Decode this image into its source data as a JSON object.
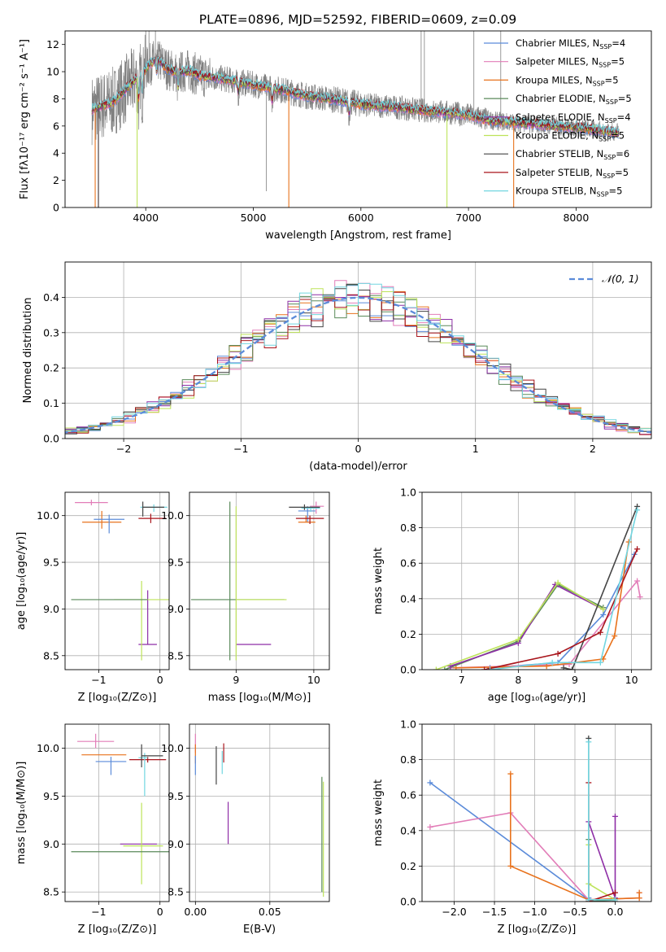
{
  "figure_title": "PLATE=0896, MJD=52592, FIBERID=0609, z=0.09",
  "colors": {
    "Chabrier MILES": "#5b8bd9",
    "Salpeter MILES": "#e27db8",
    "Kroupa MILES": "#e8721c",
    "Chabrier ELODIE": "#5a8a5a",
    "Salpeter ELODIE": "#8e2ea6",
    "Kroupa ELODIE": "#bde35a",
    "Chabrier STELIB": "#444444",
    "Salpeter STELIB": "#a8141b",
    "Kroupa STELIB": "#72d6e0"
  },
  "chart_data": [
    {
      "id": "spectrum",
      "type": "line",
      "xlabel": "wavelength [Angstrom, rest frame]",
      "ylabel": "Flux [fλ10⁻¹⁷ erg cm⁻² s⁻¹ A⁻¹]",
      "xlim": [
        3250,
        8700
      ],
      "ylim": [
        0,
        13
      ],
      "xticks": [
        4000,
        5000,
        6000,
        7000,
        8000
      ],
      "yticks": [
        0,
        2,
        4,
        6,
        8,
        10,
        12
      ],
      "grid": false,
      "legend_position": "upper-right",
      "continuum": {
        "x": [
          3500,
          3700,
          3900,
          4100,
          4200,
          4300,
          4400,
          4500,
          4700,
          4900,
          5100,
          5300,
          5500,
          5800,
          6000,
          6300,
          6500,
          6800,
          7000,
          7200,
          7500,
          7800,
          8000,
          8200,
          8400
        ],
        "y": [
          7.2,
          7.8,
          9.4,
          11.0,
          10.2,
          9.9,
          10.1,
          9.7,
          9.5,
          9.2,
          8.9,
          8.6,
          8.2,
          7.9,
          7.6,
          7.4,
          7.2,
          7.0,
          6.8,
          6.4,
          6.2,
          6.0,
          5.9,
          5.7,
          5.5
        ]
      },
      "observed_color": "#808080",
      "series": [
        {
          "name": "Chabrier MILES",
          "nssp": "4"
        },
        {
          "name": "Salpeter MILES",
          "nssp": "5"
        },
        {
          "name": "Kroupa MILES",
          "nssp": "5"
        },
        {
          "name": "Chabrier ELODIE",
          "nssp": "5"
        },
        {
          "name": "Salpeter ELODIE",
          "nssp": "4"
        },
        {
          "name": "Kroupa ELODIE",
          "nssp": "5"
        },
        {
          "name": "Chabrier STELIB",
          "nssp": "6"
        },
        {
          "name": "Salpeter STELIB",
          "nssp": "5"
        },
        {
          "name": "Kroupa STELIB",
          "nssp": "5"
        }
      ]
    },
    {
      "id": "residuals",
      "type": "line",
      "xlabel": "(data-model)/error",
      "ylabel": "Normed distribution",
      "xlim": [
        -2.5,
        2.5
      ],
      "ylim": [
        0,
        0.5
      ],
      "xticks": [
        -2,
        -1,
        0,
        1,
        2
      ],
      "xticklabels": [
        "−2",
        "−1",
        "0",
        "1",
        "2"
      ],
      "yticks": [
        0.0,
        0.1,
        0.2,
        0.3,
        0.4
      ],
      "yticklabels": [
        "0.0",
        "0.1",
        "0.2",
        "0.3",
        "0.4"
      ],
      "grid": true,
      "legend_position": "upper-right",
      "reference_label": "𝒩(0, 1)",
      "bin_width": 0.1,
      "series_order": [
        "Chabrier MILES",
        "Salpeter MILES",
        "Kroupa MILES",
        "Chabrier ELODIE",
        "Salpeter ELODIE",
        "Kroupa ELODIE",
        "Chabrier STELIB",
        "Salpeter STELIB",
        "Kroupa STELIB"
      ]
    },
    {
      "id": "z-age",
      "type": "scatter",
      "xlabel": "Z [log₁₀(Z/Z⊙)]",
      "ylabel": "age  [log₁₀(age/yr)]",
      "xlim": [
        -1.55,
        0.15
      ],
      "ylim": [
        8.35,
        10.25
      ],
      "xticks": [
        -1,
        0
      ],
      "xticklabels": [
        "−1",
        "0"
      ],
      "yticks": [
        8.5,
        9.0,
        9.5,
        10.0
      ],
      "yticklabels": [
        "8.5",
        "9.0",
        "9.5",
        "10.0"
      ],
      "grid": true,
      "points": [
        {
          "s": "Salpeter MILES",
          "x": -1.12,
          "y": 10.14,
          "xerr": [
            0.27,
            0.27
          ],
          "yerr": [
            0.03,
            0.03
          ]
        },
        {
          "s": "Kroupa MILES",
          "x": -0.95,
          "y": 9.93,
          "xerr": [
            0.32,
            0.32
          ],
          "yerr": [
            0.07,
            0.12
          ]
        },
        {
          "s": "Chabrier MILES",
          "x": -0.83,
          "y": 9.96,
          "xerr": [
            0.25,
            0.25
          ],
          "yerr": [
            0.15,
            0.05
          ]
        },
        {
          "s": "Salpeter ELODIE",
          "x": -0.2,
          "y": 8.62,
          "xerr": [
            0.15,
            0.15
          ],
          "yerr": [
            0.0,
            0.58
          ]
        },
        {
          "s": "Kroupa ELODIE",
          "x": -0.3,
          "y": 9.1,
          "xerr": [
            0.45,
            0.45
          ],
          "yerr": [
            0.65,
            0.2
          ]
        },
        {
          "s": "Chabrier ELODIE",
          "x": -0.75,
          "y": 9.1,
          "xerr": [
            0.7,
            0.55
          ],
          "yerr": [
            0.0,
            0.0
          ]
        },
        {
          "s": "Salpeter STELIB",
          "x": -0.15,
          "y": 9.97,
          "xerr": [
            0.2,
            0.25
          ],
          "yerr": [
            0.05,
            0.05
          ]
        },
        {
          "s": "Kroupa STELIB",
          "x": -0.1,
          "y": 10.09,
          "xerr": [
            0.22,
            0.22
          ],
          "yerr": [
            0.05,
            0.03
          ]
        },
        {
          "s": "Chabrier STELIB",
          "x": -0.28,
          "y": 10.09,
          "xerr": [
            0.0,
            0.35
          ],
          "yerr": [
            0.1,
            0.06
          ]
        }
      ]
    },
    {
      "id": "mass-age",
      "type": "scatter",
      "xlabel": "mass [log₁₀(M/M⊙)]",
      "ylabel": "",
      "xlim": [
        8.4,
        10.2
      ],
      "ylim": [
        8.35,
        10.25
      ],
      "xticks": [
        9,
        10
      ],
      "xticklabels": [
        "9",
        "10"
      ],
      "yticks": [
        8.5,
        9.0,
        9.5,
        10.0
      ],
      "yticklabels": [
        "8.5",
        "9.0",
        "9.5",
        "10.0"
      ],
      "grid": true,
      "points": [
        {
          "s": "Salpeter ELODIE",
          "x": 9.0,
          "y": 8.62,
          "xerr": [
            0.0,
            0.45
          ],
          "yerr": [
            0.0,
            0.0
          ]
        },
        {
          "s": "Chabrier ELODIE",
          "x": 8.92,
          "y": 9.1,
          "xerr": [
            0.5,
            0.7
          ],
          "yerr": [
            0.65,
            1.05
          ]
        },
        {
          "s": "Kroupa ELODIE",
          "x": 9.0,
          "y": 9.1,
          "xerr": [
            0.0,
            0.65
          ],
          "yerr": [
            0.65,
            1.0
          ]
        },
        {
          "s": "Chabrier MILES",
          "x": 9.92,
          "y": 10.05,
          "xerr": [
            0.12,
            0.1
          ],
          "yerr": [
            0.12,
            0.05
          ]
        },
        {
          "s": "Salpeter MILES",
          "x": 10.03,
          "y": 10.1,
          "xerr": [
            0.08,
            0.1
          ],
          "yerr": [
            0.08,
            0.05
          ]
        },
        {
          "s": "Kroupa MILES",
          "x": 9.9,
          "y": 9.93,
          "xerr": [
            0.1,
            0.12
          ],
          "yerr": [
            0.0,
            0.07
          ]
        },
        {
          "s": "Salpeter STELIB",
          "x": 9.95,
          "y": 9.97,
          "xerr": [
            0.18,
            0.18
          ],
          "yerr": [
            0.06,
            0.03
          ]
        },
        {
          "s": "Kroupa STELIB",
          "x": 9.96,
          "y": 10.08,
          "xerr": [
            0.12,
            0.12
          ],
          "yerr": [
            0.04,
            0.02
          ]
        },
        {
          "s": "Chabrier STELIB",
          "x": 9.88,
          "y": 10.09,
          "xerr": [
            0.2,
            0.2
          ],
          "yerr": [
            0.03,
            0.03
          ]
        }
      ]
    },
    {
      "id": "age-weight",
      "type": "line",
      "xlabel": "age  [log₁₀(age/yr)]",
      "ylabel": "mass weight",
      "xlim": [
        6.3,
        10.35
      ],
      "ylim": [
        0.0,
        1.0
      ],
      "xticks": [
        7,
        8,
        9,
        10
      ],
      "xticklabels": [
        "7",
        "8",
        "9",
        "10"
      ],
      "yticks": [
        0.0,
        0.2,
        0.4,
        0.6,
        0.8,
        1.0
      ],
      "yticklabels": [
        "0.0",
        "0.2",
        "0.4",
        "0.6",
        "0.8",
        "1.0"
      ],
      "grid": true,
      "series": [
        {
          "s": "Chabrier MILES",
          "x": [
            7.5,
            8.7,
            9.5,
            10.05
          ],
          "y": [
            0.01,
            0.04,
            0.31,
            0.65
          ]
        },
        {
          "s": "Salpeter MILES",
          "x": [
            6.8,
            8.9,
            10.1,
            10.15
          ],
          "y": [
            0.01,
            0.03,
            0.5,
            0.41
          ]
        },
        {
          "s": "Kroupa MILES",
          "x": [
            6.9,
            8.5,
            9.5,
            9.7,
            9.95
          ],
          "y": [
            0.01,
            0.02,
            0.06,
            0.19,
            0.72
          ]
        },
        {
          "s": "Chabrier ELODIE",
          "x": [
            6.7,
            8.0,
            8.7,
            9.5
          ],
          "y": [
            0.0,
            0.16,
            0.48,
            0.35
          ]
        },
        {
          "s": "Salpeter ELODIE",
          "x": [
            6.8,
            8.0,
            8.65,
            9.5
          ],
          "y": [
            0.02,
            0.15,
            0.48,
            0.34
          ]
        },
        {
          "s": "Kroupa ELODIE",
          "x": [
            6.55,
            8.0,
            8.7,
            9.5
          ],
          "y": [
            0.0,
            0.17,
            0.49,
            0.34
          ]
        },
        {
          "s": "Chabrier STELIB",
          "x": [
            8.8,
            8.95,
            10.1
          ],
          "y": [
            0.01,
            0.0,
            0.92
          ]
        },
        {
          "s": "Salpeter STELIB",
          "x": [
            7.4,
            8.7,
            9.45,
            10.1
          ],
          "y": [
            0.0,
            0.09,
            0.21,
            0.68
          ]
        },
        {
          "s": "Kroupa STELIB",
          "x": [
            7.5,
            8.6,
            9.45,
            10.1
          ],
          "y": [
            0.0,
            0.04,
            0.04,
            0.9
          ]
        }
      ]
    },
    {
      "id": "z-mass",
      "type": "scatter",
      "xlabel": "Z [log₁₀(Z/Z⊙)]",
      "ylabel": "mass [log₁₀(M/M⊙)]",
      "xlim": [
        -1.55,
        0.15
      ],
      "ylim": [
        8.4,
        10.25
      ],
      "xticks": [
        -1,
        0
      ],
      "xticklabels": [
        "−1",
        "0"
      ],
      "yticks": [
        8.5,
        9.0,
        9.5,
        10.0
      ],
      "yticklabels": [
        "8.5",
        "9.0",
        "9.5",
        "10.0"
      ],
      "grid": true,
      "points": [
        {
          "s": "Salpeter MILES",
          "x": -1.05,
          "y": 10.07,
          "xerr": [
            0.3,
            0.3
          ],
          "yerr": [
            0.07,
            0.08
          ]
        },
        {
          "s": "Kroupa MILES",
          "x": -0.9,
          "y": 9.93,
          "xerr": [
            0.38,
            0.35
          ],
          "yerr": [
            0.0,
            0.0
          ]
        },
        {
          "s": "Chabrier MILES",
          "x": -0.8,
          "y": 9.86,
          "xerr": [
            0.25,
            0.25
          ],
          "yerr": [
            0.14,
            0.05
          ]
        },
        {
          "s": "Salpeter ELODIE",
          "x": -0.45,
          "y": 9.0,
          "xerr": [
            0.2,
            0.4
          ],
          "yerr": [
            0.0,
            0.0
          ]
        },
        {
          "s": "Kroupa ELODIE",
          "x": -0.3,
          "y": 8.98,
          "xerr": [
            0.3,
            0.35
          ],
          "yerr": [
            0.4,
            0.45
          ]
        },
        {
          "s": "Chabrier ELODIE",
          "x": -0.6,
          "y": 8.92,
          "xerr": [
            0.85,
            0.85
          ],
          "yerr": [
            0.0,
            0.0
          ]
        },
        {
          "s": "Salpeter STELIB",
          "x": -0.2,
          "y": 9.88,
          "xerr": [
            0.3,
            0.3
          ],
          "yerr": [
            0.03,
            0.03
          ]
        },
        {
          "s": "Kroupa STELIB",
          "x": -0.25,
          "y": 9.9,
          "xerr": [
            0.1,
            0.05
          ],
          "yerr": [
            0.4,
            0.05
          ]
        },
        {
          "s": "Chabrier STELIB",
          "x": -0.3,
          "y": 9.92,
          "xerr": [
            0.0,
            0.35
          ],
          "yerr": [
            0.12,
            0.12
          ]
        }
      ]
    },
    {
      "id": "ebv-mass",
      "type": "scatter",
      "xlabel": "E(B-V)",
      "ylabel": "",
      "xlim": [
        -0.004,
        0.09
      ],
      "ylim": [
        8.4,
        10.25
      ],
      "xticks": [
        0.0,
        0.05
      ],
      "xticklabels": [
        "0.00",
        "0.05"
      ],
      "yticks": [
        8.5,
        9.0,
        9.5,
        10.0
      ],
      "yticklabels": [
        "8.5",
        "9.0",
        "9.5",
        "10.0"
      ],
      "grid": true,
      "points": [
        {
          "s": "Salpeter MILES",
          "x": 0.0,
          "y": 10.05,
          "xerr": [
            0,
            0
          ],
          "yerr": [
            0.1,
            0.1
          ]
        },
        {
          "s": "Kroupa MILES",
          "x": 0.0,
          "y": 9.94,
          "xerr": [
            0,
            0
          ],
          "yerr": [
            0.1,
            0.1
          ]
        },
        {
          "s": "Chabrier MILES",
          "x": 0.0,
          "y": 9.82,
          "xerr": [
            0,
            0
          ],
          "yerr": [
            0.1,
            0.1
          ]
        },
        {
          "s": "Chabrier STELIB",
          "x": 0.014,
          "y": 9.82,
          "xerr": [
            0,
            0
          ],
          "yerr": [
            0.2,
            0.2
          ]
        },
        {
          "s": "Salpeter STELIB",
          "x": 0.019,
          "y": 9.95,
          "xerr": [
            0,
            0
          ],
          "yerr": [
            0.1,
            0.1
          ]
        },
        {
          "s": "Kroupa STELIB",
          "x": 0.018,
          "y": 9.85,
          "xerr": [
            0,
            0
          ],
          "yerr": [
            0.12,
            0.12
          ]
        },
        {
          "s": "Salpeter ELODIE",
          "x": 0.022,
          "y": 9.22,
          "xerr": [
            0,
            0
          ],
          "yerr": [
            0.22,
            0.22
          ]
        },
        {
          "s": "Kroupa ELODIE",
          "x": 0.086,
          "y": 9.05,
          "xerr": [
            0,
            0
          ],
          "yerr": [
            0.6,
            0.6
          ]
        },
        {
          "s": "Chabrier ELODIE",
          "x": 0.085,
          "y": 9.1,
          "xerr": [
            0,
            0
          ],
          "yerr": [
            0.6,
            0.6
          ]
        }
      ]
    },
    {
      "id": "z-weight",
      "type": "line",
      "xlabel": "Z [log₁₀(Z/Z⊙)]",
      "ylabel": "mass weight",
      "xlim": [
        -2.4,
        0.45
      ],
      "ylim": [
        0.0,
        1.0
      ],
      "xticks": [
        -2.0,
        -1.5,
        -1.0,
        -0.5,
        0.0
      ],
      "xticklabels": [
        "−2.0",
        "−1.5",
        "−1.0",
        "−0.5",
        "0.0"
      ],
      "yticks": [
        0.0,
        0.2,
        0.4,
        0.6,
        0.8,
        1.0
      ],
      "yticklabels": [
        "0.0",
        "0.2",
        "0.4",
        "0.6",
        "0.8",
        "1.0"
      ],
      "grid": true,
      "series": [
        {
          "s": "Chabrier MILES",
          "x": [
            -2.3,
            -0.33,
            -0.33
          ],
          "y": [
            0.67,
            0.01,
            0.02
          ]
        },
        {
          "s": "Salpeter MILES",
          "x": [
            -2.3,
            -1.3,
            -0.33,
            0.3,
            0.3
          ],
          "y": [
            0.42,
            0.5,
            0.01,
            0.02,
            0.05
          ]
        },
        {
          "s": "Kroupa MILES",
          "x": [
            -1.3,
            -1.3,
            -0.33,
            0.3,
            0.3
          ],
          "y": [
            0.72,
            0.2,
            0.01,
            0.02,
            0.05
          ]
        },
        {
          "s": "Chabrier ELODIE",
          "x": [
            -0.33,
            -0.33,
            0.0
          ],
          "y": [
            0.35,
            0.0,
            0.01
          ]
        },
        {
          "s": "Salpeter ELODIE",
          "x": [
            -0.33,
            0.0,
            0.0
          ],
          "y": [
            0.45,
            0.02,
            0.48
          ]
        },
        {
          "s": "Kroupa ELODIE",
          "x": [
            -0.33,
            -0.33,
            0.0
          ],
          "y": [
            0.32,
            0.1,
            0.01
          ]
        },
        {
          "s": "Chabrier STELIB",
          "x": [
            -0.33,
            -0.33,
            0.0
          ],
          "y": [
            0.92,
            0.0,
            0.0
          ]
        },
        {
          "s": "Salpeter STELIB",
          "x": [
            -0.33,
            -0.33,
            0.0
          ],
          "y": [
            0.67,
            0.0,
            0.05
          ]
        },
        {
          "s": "Kroupa STELIB",
          "x": [
            -0.33,
            -0.33,
            0.0
          ],
          "y": [
            0.9,
            0.01,
            0.01
          ]
        }
      ]
    }
  ]
}
